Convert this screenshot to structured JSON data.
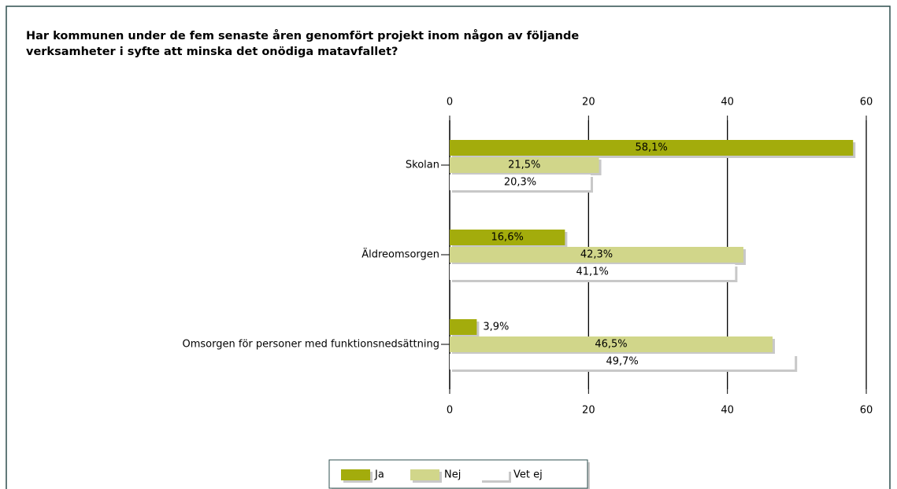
{
  "chart_data": {
    "type": "hbar",
    "title_lines": [
      "Har kommunen under de fem senaste åren genomfört projekt inom någon av följande",
      "verksamheter i syfte att minska det onödiga matavfallet?"
    ],
    "categories": [
      "Skolan",
      "Äldreomsorgen",
      "Omsorgen för personer med funktionsnedsättning"
    ],
    "series": [
      {
        "name": "Ja",
        "color": "#a3ac0c",
        "values": [
          58.1,
          16.6,
          3.9
        ],
        "value_labels": [
          "58,1%",
          "16,6%",
          "3,9%"
        ]
      },
      {
        "name": "Nej",
        "color": "#d1d68a",
        "values": [
          21.5,
          42.3,
          46.5
        ],
        "value_labels": [
          "21,5%",
          "42,3%",
          "46,5%"
        ]
      },
      {
        "name": "Vet ej",
        "color": "#ffffff",
        "values": [
          20.3,
          41.1,
          49.7
        ],
        "value_labels": [
          "20,3%",
          "41,1%",
          "49,7%"
        ]
      }
    ],
    "xlim": [
      0,
      60
    ],
    "xticks": [
      0,
      20,
      40,
      60
    ],
    "grid": true
  }
}
